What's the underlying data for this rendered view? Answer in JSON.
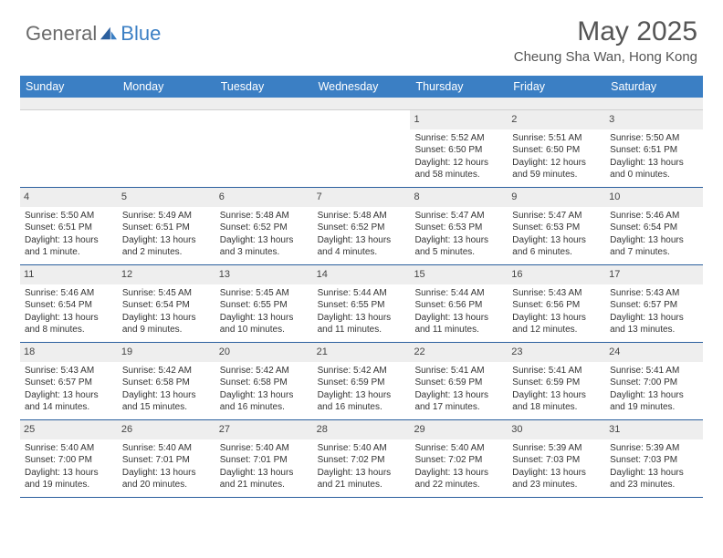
{
  "brand": {
    "part1": "General",
    "part2": "Blue"
  },
  "title": "May 2025",
  "location": "Cheung Sha Wan, Hong Kong",
  "colors": {
    "header_bg": "#3b7fc4",
    "header_text": "#ffffff",
    "daynum_bg": "#eeeeee",
    "week_border": "#2b5f9e",
    "logo_gray": "#6b6b6b",
    "logo_blue": "#3b7fc4",
    "text": "#333333"
  },
  "day_names": [
    "Sunday",
    "Monday",
    "Tuesday",
    "Wednesday",
    "Thursday",
    "Friday",
    "Saturday"
  ],
  "weeks": [
    [
      {
        "n": "",
        "sr": "",
        "ss": "",
        "dl": "",
        "empty": true
      },
      {
        "n": "",
        "sr": "",
        "ss": "",
        "dl": "",
        "empty": true
      },
      {
        "n": "",
        "sr": "",
        "ss": "",
        "dl": "",
        "empty": true
      },
      {
        "n": "",
        "sr": "",
        "ss": "",
        "dl": "",
        "empty": true
      },
      {
        "n": "1",
        "sr": "Sunrise: 5:52 AM",
        "ss": "Sunset: 6:50 PM",
        "dl": "Daylight: 12 hours and 58 minutes."
      },
      {
        "n": "2",
        "sr": "Sunrise: 5:51 AM",
        "ss": "Sunset: 6:50 PM",
        "dl": "Daylight: 12 hours and 59 minutes."
      },
      {
        "n": "3",
        "sr": "Sunrise: 5:50 AM",
        "ss": "Sunset: 6:51 PM",
        "dl": "Daylight: 13 hours and 0 minutes."
      }
    ],
    [
      {
        "n": "4",
        "sr": "Sunrise: 5:50 AM",
        "ss": "Sunset: 6:51 PM",
        "dl": "Daylight: 13 hours and 1 minute."
      },
      {
        "n": "5",
        "sr": "Sunrise: 5:49 AM",
        "ss": "Sunset: 6:51 PM",
        "dl": "Daylight: 13 hours and 2 minutes."
      },
      {
        "n": "6",
        "sr": "Sunrise: 5:48 AM",
        "ss": "Sunset: 6:52 PM",
        "dl": "Daylight: 13 hours and 3 minutes."
      },
      {
        "n": "7",
        "sr": "Sunrise: 5:48 AM",
        "ss": "Sunset: 6:52 PM",
        "dl": "Daylight: 13 hours and 4 minutes."
      },
      {
        "n": "8",
        "sr": "Sunrise: 5:47 AM",
        "ss": "Sunset: 6:53 PM",
        "dl": "Daylight: 13 hours and 5 minutes."
      },
      {
        "n": "9",
        "sr": "Sunrise: 5:47 AM",
        "ss": "Sunset: 6:53 PM",
        "dl": "Daylight: 13 hours and 6 minutes."
      },
      {
        "n": "10",
        "sr": "Sunrise: 5:46 AM",
        "ss": "Sunset: 6:54 PM",
        "dl": "Daylight: 13 hours and 7 minutes."
      }
    ],
    [
      {
        "n": "11",
        "sr": "Sunrise: 5:46 AM",
        "ss": "Sunset: 6:54 PM",
        "dl": "Daylight: 13 hours and 8 minutes."
      },
      {
        "n": "12",
        "sr": "Sunrise: 5:45 AM",
        "ss": "Sunset: 6:54 PM",
        "dl": "Daylight: 13 hours and 9 minutes."
      },
      {
        "n": "13",
        "sr": "Sunrise: 5:45 AM",
        "ss": "Sunset: 6:55 PM",
        "dl": "Daylight: 13 hours and 10 minutes."
      },
      {
        "n": "14",
        "sr": "Sunrise: 5:44 AM",
        "ss": "Sunset: 6:55 PM",
        "dl": "Daylight: 13 hours and 11 minutes."
      },
      {
        "n": "15",
        "sr": "Sunrise: 5:44 AM",
        "ss": "Sunset: 6:56 PM",
        "dl": "Daylight: 13 hours and 11 minutes."
      },
      {
        "n": "16",
        "sr": "Sunrise: 5:43 AM",
        "ss": "Sunset: 6:56 PM",
        "dl": "Daylight: 13 hours and 12 minutes."
      },
      {
        "n": "17",
        "sr": "Sunrise: 5:43 AM",
        "ss": "Sunset: 6:57 PM",
        "dl": "Daylight: 13 hours and 13 minutes."
      }
    ],
    [
      {
        "n": "18",
        "sr": "Sunrise: 5:43 AM",
        "ss": "Sunset: 6:57 PM",
        "dl": "Daylight: 13 hours and 14 minutes."
      },
      {
        "n": "19",
        "sr": "Sunrise: 5:42 AM",
        "ss": "Sunset: 6:58 PM",
        "dl": "Daylight: 13 hours and 15 minutes."
      },
      {
        "n": "20",
        "sr": "Sunrise: 5:42 AM",
        "ss": "Sunset: 6:58 PM",
        "dl": "Daylight: 13 hours and 16 minutes."
      },
      {
        "n": "21",
        "sr": "Sunrise: 5:42 AM",
        "ss": "Sunset: 6:59 PM",
        "dl": "Daylight: 13 hours and 16 minutes."
      },
      {
        "n": "22",
        "sr": "Sunrise: 5:41 AM",
        "ss": "Sunset: 6:59 PM",
        "dl": "Daylight: 13 hours and 17 minutes."
      },
      {
        "n": "23",
        "sr": "Sunrise: 5:41 AM",
        "ss": "Sunset: 6:59 PM",
        "dl": "Daylight: 13 hours and 18 minutes."
      },
      {
        "n": "24",
        "sr": "Sunrise: 5:41 AM",
        "ss": "Sunset: 7:00 PM",
        "dl": "Daylight: 13 hours and 19 minutes."
      }
    ],
    [
      {
        "n": "25",
        "sr": "Sunrise: 5:40 AM",
        "ss": "Sunset: 7:00 PM",
        "dl": "Daylight: 13 hours and 19 minutes."
      },
      {
        "n": "26",
        "sr": "Sunrise: 5:40 AM",
        "ss": "Sunset: 7:01 PM",
        "dl": "Daylight: 13 hours and 20 minutes."
      },
      {
        "n": "27",
        "sr": "Sunrise: 5:40 AM",
        "ss": "Sunset: 7:01 PM",
        "dl": "Daylight: 13 hours and 21 minutes."
      },
      {
        "n": "28",
        "sr": "Sunrise: 5:40 AM",
        "ss": "Sunset: 7:02 PM",
        "dl": "Daylight: 13 hours and 21 minutes."
      },
      {
        "n": "29",
        "sr": "Sunrise: 5:40 AM",
        "ss": "Sunset: 7:02 PM",
        "dl": "Daylight: 13 hours and 22 minutes."
      },
      {
        "n": "30",
        "sr": "Sunrise: 5:39 AM",
        "ss": "Sunset: 7:03 PM",
        "dl": "Daylight: 13 hours and 23 minutes."
      },
      {
        "n": "31",
        "sr": "Sunrise: 5:39 AM",
        "ss": "Sunset: 7:03 PM",
        "dl": "Daylight: 13 hours and 23 minutes."
      }
    ]
  ]
}
